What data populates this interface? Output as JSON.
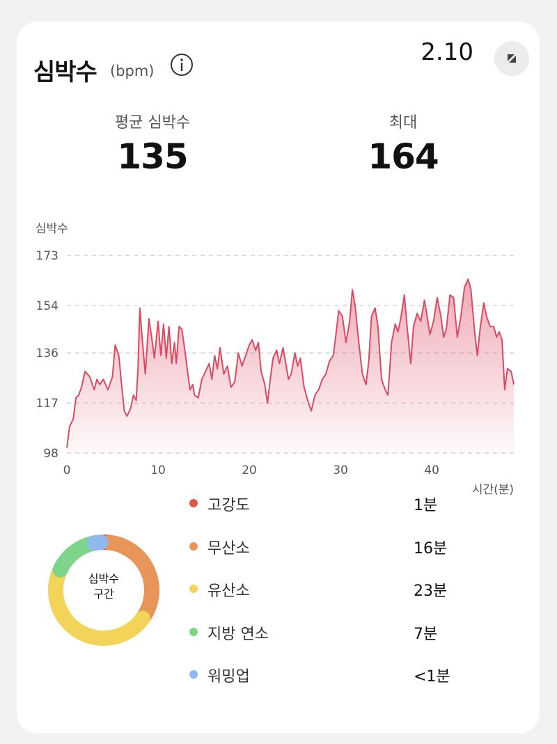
{
  "header": {
    "title": "심박수",
    "unit": "(bpm)",
    "date": "2.10"
  },
  "stats": {
    "avg_label": "평균 심박수",
    "avg_value": "135",
    "max_label": "최대",
    "max_value": "164"
  },
  "chart_data": {
    "type": "area",
    "ylabel": "심박수",
    "xlabel": "시간(분)",
    "ylim": [
      98,
      173
    ],
    "xlim": [
      0,
      49
    ],
    "yticks": [
      "173",
      "154",
      "136",
      "117",
      "98"
    ],
    "xticks": [
      "0",
      "10",
      "20",
      "30",
      "40"
    ],
    "grid": true,
    "color": "#d94b63",
    "points": [
      [
        0,
        100
      ],
      [
        0.3,
        108
      ],
      [
        0.7,
        111
      ],
      [
        1,
        119
      ],
      [
        1.3,
        120
      ],
      [
        1.6,
        123
      ],
      [
        2,
        129
      ],
      [
        2.5,
        127
      ],
      [
        3,
        122
      ],
      [
        3.3,
        126
      ],
      [
        3.6,
        124
      ],
      [
        4,
        126
      ],
      [
        4.5,
        122
      ],
      [
        5,
        127
      ],
      [
        5.3,
        139
      ],
      [
        5.7,
        135
      ],
      [
        6,
        124
      ],
      [
        6.3,
        114
      ],
      [
        6.6,
        112
      ],
      [
        7,
        115
      ],
      [
        7.3,
        120
      ],
      [
        7.6,
        118
      ],
      [
        7.8,
        130
      ],
      [
        8,
        153
      ],
      [
        8.3,
        140
      ],
      [
        8.6,
        128
      ],
      [
        9,
        149
      ],
      [
        9.3,
        142
      ],
      [
        9.6,
        134
      ],
      [
        10,
        148
      ],
      [
        10.3,
        135
      ],
      [
        10.6,
        147
      ],
      [
        10.9,
        134
      ],
      [
        11.2,
        146
      ],
      [
        11.5,
        132
      ],
      [
        11.8,
        140
      ],
      [
        12,
        132
      ],
      [
        12.3,
        146
      ],
      [
        12.6,
        145
      ],
      [
        12.9,
        138
      ],
      [
        13.2,
        130
      ],
      [
        13.5,
        122
      ],
      [
        13.8,
        124
      ],
      [
        14,
        120
      ],
      [
        14.4,
        119
      ],
      [
        14.8,
        126
      ],
      [
        15.2,
        129
      ],
      [
        15.6,
        132
      ],
      [
        15.9,
        126
      ],
      [
        16.2,
        135
      ],
      [
        16.5,
        130
      ],
      [
        16.8,
        138
      ],
      [
        17.2,
        128
      ],
      [
        17.6,
        131
      ],
      [
        18,
        123
      ],
      [
        18.4,
        125
      ],
      [
        18.8,
        136
      ],
      [
        19.2,
        131
      ],
      [
        19.6,
        135
      ],
      [
        20,
        139
      ],
      [
        20.3,
        141
      ],
      [
        20.7,
        137
      ],
      [
        21,
        140
      ],
      [
        21.3,
        129
      ],
      [
        21.7,
        124
      ],
      [
        22,
        117
      ],
      [
        22.3,
        126
      ],
      [
        22.6,
        134
      ],
      [
        23,
        137
      ],
      [
        23.3,
        132
      ],
      [
        23.7,
        138
      ],
      [
        24,
        132
      ],
      [
        24.3,
        126
      ],
      [
        24.6,
        128
      ],
      [
        25,
        136
      ],
      [
        25.3,
        131
      ],
      [
        25.6,
        134
      ],
      [
        26,
        123
      ],
      [
        26.4,
        118
      ],
      [
        26.8,
        114
      ],
      [
        27.2,
        120
      ],
      [
        27.6,
        122
      ],
      [
        28,
        126
      ],
      [
        28.4,
        128
      ],
      [
        28.8,
        133
      ],
      [
        29.2,
        135
      ],
      [
        29.5,
        143
      ],
      [
        29.8,
        152
      ],
      [
        30.2,
        150
      ],
      [
        30.6,
        140
      ],
      [
        31,
        148
      ],
      [
        31.3,
        160
      ],
      [
        31.6,
        154
      ],
      [
        32,
        140
      ],
      [
        32.4,
        128
      ],
      [
        32.8,
        124
      ],
      [
        33.1,
        133
      ],
      [
        33.4,
        150
      ],
      [
        33.8,
        153
      ],
      [
        34.1,
        146
      ],
      [
        34.5,
        126
      ],
      [
        34.9,
        122
      ],
      [
        35.2,
        120
      ],
      [
        35.6,
        140
      ],
      [
        36,
        147
      ],
      [
        36.3,
        144
      ],
      [
        36.6,
        149
      ],
      [
        37,
        158
      ],
      [
        37.3,
        146
      ],
      [
        37.7,
        132
      ],
      [
        38,
        146
      ],
      [
        38.4,
        151
      ],
      [
        38.8,
        148
      ],
      [
        39.2,
        156
      ],
      [
        39.5,
        150
      ],
      [
        39.8,
        143
      ],
      [
        40.2,
        148
      ],
      [
        40.6,
        157
      ],
      [
        41,
        150
      ],
      [
        41.3,
        142
      ],
      [
        41.6,
        145
      ],
      [
        42,
        158
      ],
      [
        42.4,
        157
      ],
      [
        42.8,
        142
      ],
      [
        43.2,
        150
      ],
      [
        43.6,
        161
      ],
      [
        44,
        164
      ],
      [
        44.3,
        160
      ],
      [
        44.7,
        144
      ],
      [
        45,
        135
      ],
      [
        45.3,
        145
      ],
      [
        45.7,
        155
      ],
      [
        46,
        150
      ],
      [
        46.4,
        146
      ],
      [
        46.8,
        146
      ],
      [
        47.1,
        142
      ],
      [
        47.4,
        144
      ],
      [
        47.7,
        141
      ],
      [
        48,
        122
      ],
      [
        48.3,
        130
      ],
      [
        48.7,
        129
      ],
      [
        49,
        124
      ]
    ]
  },
  "zones": {
    "center_label_line1": "심박수",
    "center_label_line2": "구간",
    "items": [
      {
        "name": "고강도",
        "value": "1분",
        "color": "#e2564a",
        "fraction": 0.02
      },
      {
        "name": "무산소",
        "value": "16분",
        "color": "#e8955a",
        "fraction": 0.33
      },
      {
        "name": "유산소",
        "value": "23분",
        "color": "#f1d458",
        "fraction": 0.47
      },
      {
        "name": "지방 연소",
        "value": "7분",
        "color": "#7dd58b",
        "fraction": 0.15
      },
      {
        "name": "워밍업",
        "value": "<1분",
        "color": "#8fb8ec",
        "fraction": 0.02
      }
    ]
  },
  "colors": {
    "accent": "#d94b63",
    "card": "#ffffff",
    "background": "#f2f2f3"
  },
  "icons": [
    "info-icon",
    "expand-icon"
  ]
}
